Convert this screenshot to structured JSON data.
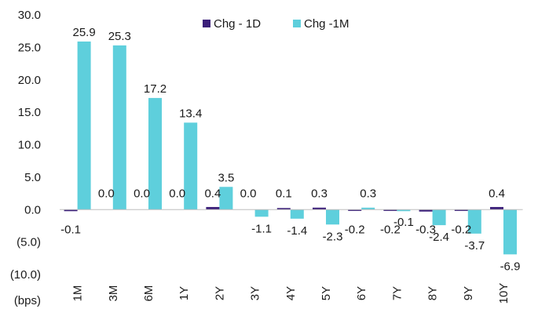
{
  "chart_data": {
    "type": "bar",
    "ylabel": "(bps)",
    "ylim": [
      -10,
      30
    ],
    "y_ticks": [
      "30.0",
      "25.0",
      "20.0",
      "15.0",
      "10.0",
      "5.0",
      "0.0",
      "(5.0)",
      "(10.0)"
    ],
    "y_tick_values": [
      30,
      25,
      20,
      15,
      10,
      5,
      0,
      -5,
      -10
    ],
    "categories": [
      "1M",
      "3M",
      "6M",
      "1Y",
      "2Y",
      "3Y",
      "4Y",
      "5Y",
      "6Y",
      "7Y",
      "8Y",
      "9Y",
      "10Y"
    ],
    "series": [
      {
        "name": "Chg - 1D",
        "color": "#3b1f7a",
        "values": [
          -0.1,
          0.0,
          0.0,
          0.0,
          0.4,
          0.0,
          0.1,
          0.3,
          -0.2,
          -0.2,
          -0.3,
          -0.2,
          0.4
        ],
        "labels": [
          "-0.1",
          "0.0",
          "0.0",
          "0.0",
          "0.4",
          "0.0",
          "0.1",
          "0.3",
          "-0.2",
          "-0.2",
          "-0.3",
          "-0.2",
          "0.4"
        ]
      },
      {
        "name": "Chg -1M",
        "color": "#5ecfdc",
        "values": [
          25.9,
          25.3,
          17.2,
          13.4,
          3.5,
          -1.1,
          -1.4,
          -2.3,
          0.3,
          -0.1,
          -2.4,
          -3.7,
          -6.9
        ],
        "labels": [
          "25.9",
          "25.3",
          "17.2",
          "13.4",
          "3.5",
          "-1.1",
          "-1.4",
          "-2.3",
          "0.3",
          "-0.1",
          "-2.4",
          "-3.7",
          "-6.9"
        ]
      }
    ],
    "legend_position": "top-center",
    "grid": false
  }
}
